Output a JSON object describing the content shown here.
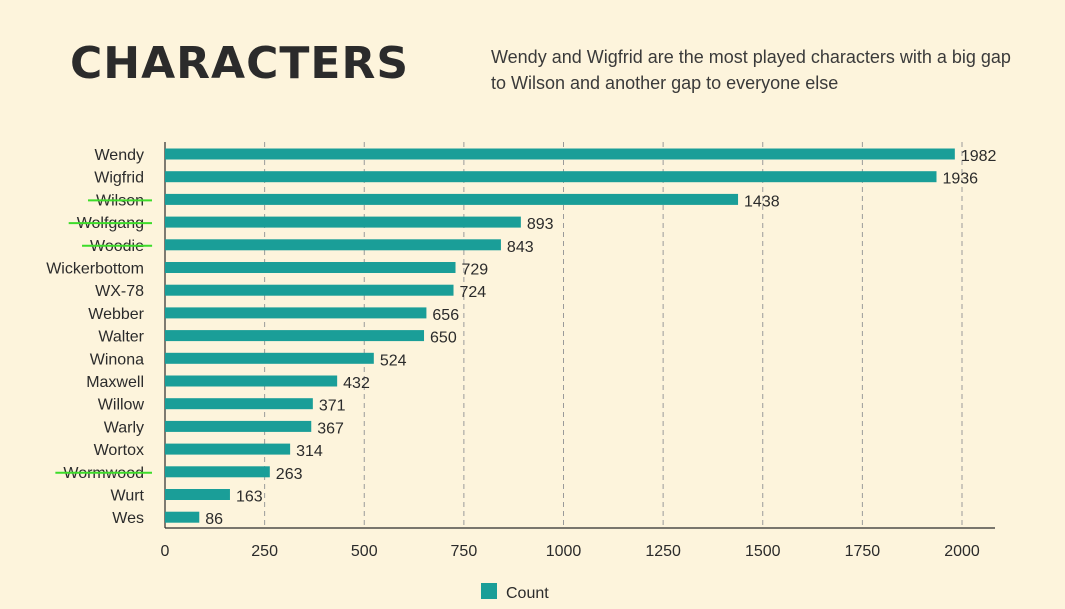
{
  "chart_data": {
    "type": "bar",
    "orientation": "horizontal",
    "title": "CHARACTERS",
    "subtitle": "Wendy and Wigfrid  are the most played characters with a big gap to Wilson and another gap to everyone else",
    "categories": [
      "Wendy",
      "Wigfrid",
      "Wilson",
      "Wolfgang",
      "Woodie",
      "Wickerbottom",
      "WX-78",
      "Webber",
      "Walter",
      "Winona",
      "Maxwell",
      "Willow",
      "Warly",
      "Wortox",
      "Wormwood",
      "Wurt",
      "Wes"
    ],
    "values": [
      1982,
      1936,
      1438,
      893,
      843,
      729,
      724,
      656,
      650,
      524,
      432,
      371,
      367,
      314,
      263,
      163,
      86
    ],
    "struck_out": [
      "Wilson",
      "Wolfgang",
      "Woodie",
      "Wormwood"
    ],
    "xlim": [
      0,
      2000
    ],
    "xticks": [
      0,
      250,
      500,
      750,
      1000,
      1250,
      1500,
      1750,
      2000
    ],
    "grid": "vertical dashed",
    "legend": {
      "label": "Count",
      "position": "bottom-center"
    },
    "colors": {
      "bar": "#1a9e98",
      "strike": "#3ddc2a",
      "grid": "#9a9a9a",
      "axis": "#2b2b2b"
    }
  }
}
